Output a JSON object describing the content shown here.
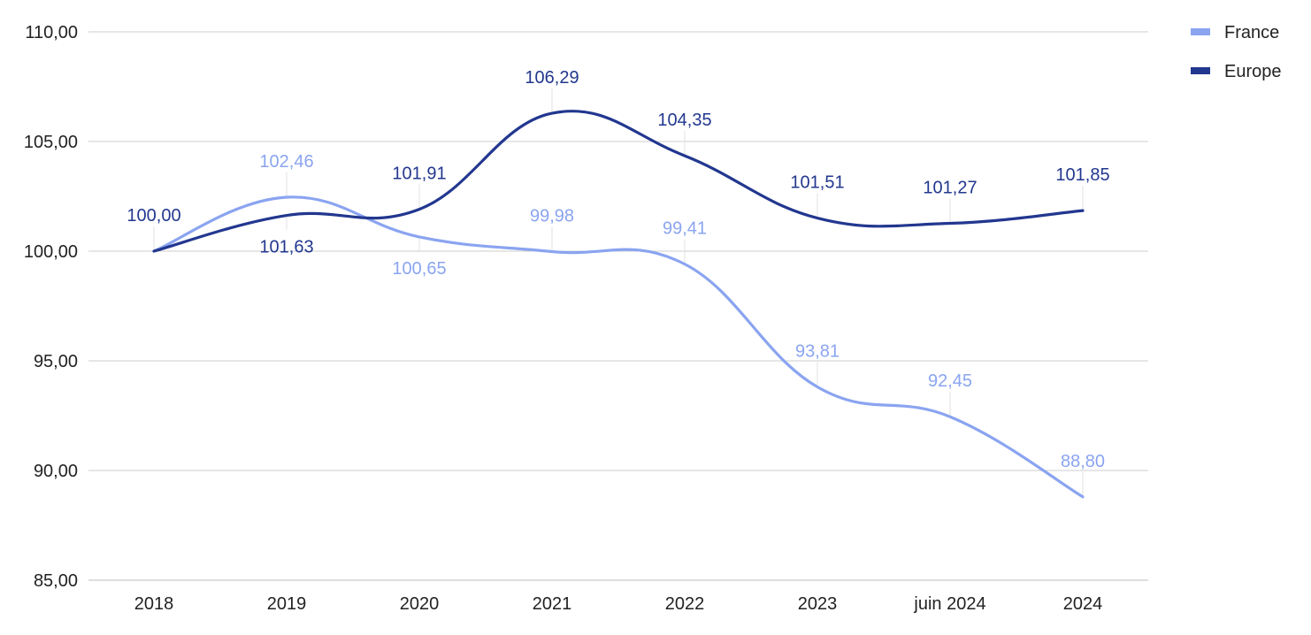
{
  "chart_data": {
    "type": "line",
    "title": "",
    "xlabel": "",
    "ylabel": "",
    "categories": [
      "2018",
      "2019",
      "2020",
      "2021",
      "2022",
      "2023",
      "juin 2024",
      "2024"
    ],
    "ylim": [
      85,
      110
    ],
    "y_ticks": [
      85,
      90,
      95,
      100,
      105,
      110
    ],
    "y_tick_labels": [
      "85,00",
      "90,00",
      "95,00",
      "100,00",
      "105,00",
      "110,00"
    ],
    "grid": true,
    "legend_position": "top-right",
    "smooth": true,
    "series": [
      {
        "name": "France",
        "color": "#8aa4f0",
        "values": [
          100.0,
          102.46,
          100.65,
          99.98,
          99.41,
          93.81,
          92.45,
          88.8
        ],
        "labels": [
          "",
          "102,46",
          "100,65",
          "99,98",
          "99,41",
          "93,81",
          "92,45",
          "88,80"
        ],
        "label_side": [
          null,
          "above",
          "below",
          "above",
          "above",
          "above",
          "above",
          "above"
        ]
      },
      {
        "name": "Europe",
        "color": "#22378f",
        "values": [
          100.0,
          101.63,
          101.91,
          106.29,
          104.35,
          101.51,
          101.27,
          101.85
        ],
        "labels": [
          "100,00",
          "101,63",
          "101,91",
          "106,29",
          "104,35",
          "101,51",
          "101,27",
          "101,85"
        ],
        "label_side": [
          "above",
          "below",
          "above",
          "above",
          "above",
          "above",
          "above",
          "above"
        ]
      }
    ]
  }
}
